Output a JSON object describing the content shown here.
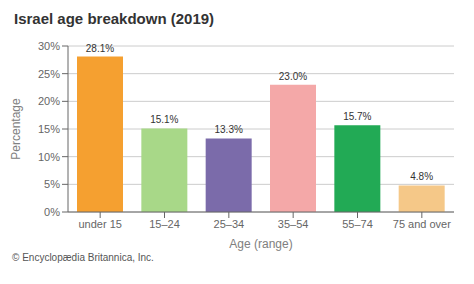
{
  "chart_data": {
    "type": "bar",
    "title": "Israel age breakdown (2019)",
    "x_label": "Age (range)",
    "y_label": "Percentage",
    "categories": [
      "under 15",
      "15–24",
      "25–34",
      "35–54",
      "55–74",
      "75 and over"
    ],
    "values": [
      28.1,
      15.1,
      13.3,
      23.0,
      15.7,
      4.8
    ],
    "value_labels": [
      "28.1%",
      "15.1%",
      "13.3%",
      "23.0%",
      "15.7%",
      "4.8%"
    ],
    "colors": [
      "#F5A030",
      "#A8D888",
      "#7B6BAA",
      "#F4A8A8",
      "#22AA55",
      "#F5C888"
    ],
    "data_labels": true,
    "ylim": [
      0,
      30
    ],
    "yticks": [
      {
        "value": 0,
        "label": "0%"
      },
      {
        "value": 5,
        "label": "5%"
      },
      {
        "value": 10,
        "label": "10%"
      },
      {
        "value": 15,
        "label": "15%"
      },
      {
        "value": 20,
        "label": "20%"
      },
      {
        "value": 25,
        "label": "25%"
      },
      {
        "value": 30,
        "label": "30%"
      }
    ],
    "grid": true,
    "annotations": [
      "© Encyclopædia Britannica, Inc."
    ]
  }
}
